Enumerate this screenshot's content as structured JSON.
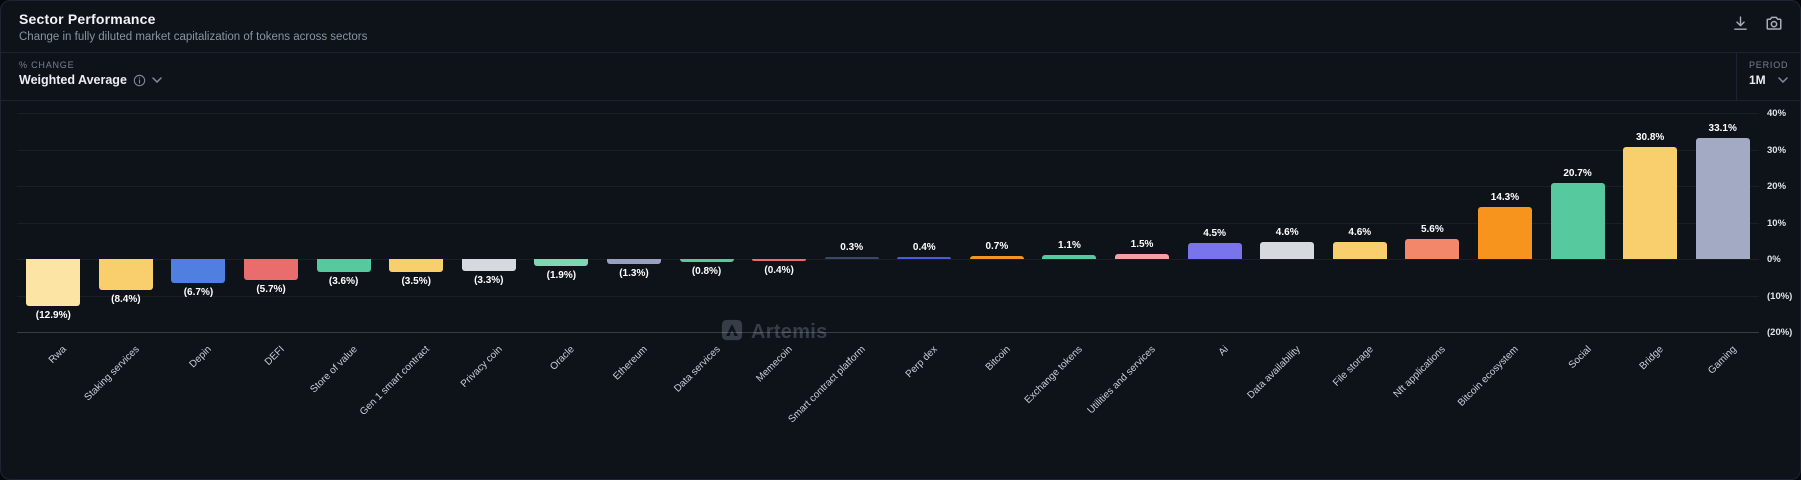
{
  "header": {
    "title": "Sector Performance",
    "subtitle": "Change in fully diluted market capitalization of tokens across sectors"
  },
  "toolbar": {
    "metric_label": "% CHANGE",
    "metric_value": "Weighted Average",
    "period_label": "PERIOD",
    "period_value": "1M"
  },
  "watermark": {
    "text": "Artemis"
  },
  "chart_data": {
    "type": "bar",
    "title": "Sector Performance",
    "xlabel": "",
    "ylabel": "% Change",
    "ylim": [
      -20,
      40
    ],
    "grid": true,
    "y_tick_values": [
      40,
      30,
      20,
      10,
      0,
      -10,
      -20
    ],
    "y_tick_labels": [
      "40%",
      "30%",
      "20%",
      "10%",
      "0%",
      "(10%)",
      "(20%)"
    ],
    "categories": [
      "Rwa",
      "Staking services",
      "Depin",
      "DEFI",
      "Store of value",
      "Gen 1 smart contract",
      "Privacy coin",
      "Oracle",
      "Ethereum",
      "Data services",
      "Memecoin",
      "Smart contract platform",
      "Perp dex",
      "Bitcoin",
      "Exchange tokens",
      "Utilities and services",
      "Ai",
      "Data availability",
      "File storage",
      "Nft applications",
      "Bitcoin ecosystem",
      "Social",
      "Bridge",
      "Gaming"
    ],
    "values": [
      -12.9,
      -8.4,
      -6.7,
      -5.7,
      -3.6,
      -3.5,
      -3.3,
      -1.9,
      -1.3,
      -0.8,
      -0.4,
      0.3,
      0.4,
      0.7,
      1.1,
      1.5,
      4.5,
      4.6,
      4.6,
      5.6,
      14.3,
      20.7,
      30.8,
      33.1
    ],
    "value_labels": [
      "(12.9%)",
      "(8.4%)",
      "(6.7%)",
      "(5.7%)",
      "(3.6%)",
      "(3.5%)",
      "(3.3%)",
      "(1.9%)",
      "(1.3%)",
      "(0.8%)",
      "(0.4%)",
      "0.3%",
      "0.4%",
      "0.7%",
      "1.1%",
      "1.5%",
      "4.5%",
      "4.6%",
      "4.6%",
      "5.6%",
      "14.3%",
      "20.7%",
      "30.8%",
      "33.1%"
    ],
    "colors": [
      "#fbe4a4",
      "#f9cf6e",
      "#4e7fe1",
      "#e96d6d",
      "#57c99f",
      "#f9cf6e",
      "#d6d9de",
      "#7fd6b2",
      "#98a1c0",
      "#57c99f",
      "#e96d6d",
      "#3d4868",
      "#4a5cd8",
      "#f7941d",
      "#57c99f",
      "#f0a3a3",
      "#7a74ec",
      "#d6d9de",
      "#f9cf6e",
      "#f2876a",
      "#f7941d",
      "#57c99f",
      "#f9cf6e",
      "#a3aac4"
    ]
  }
}
